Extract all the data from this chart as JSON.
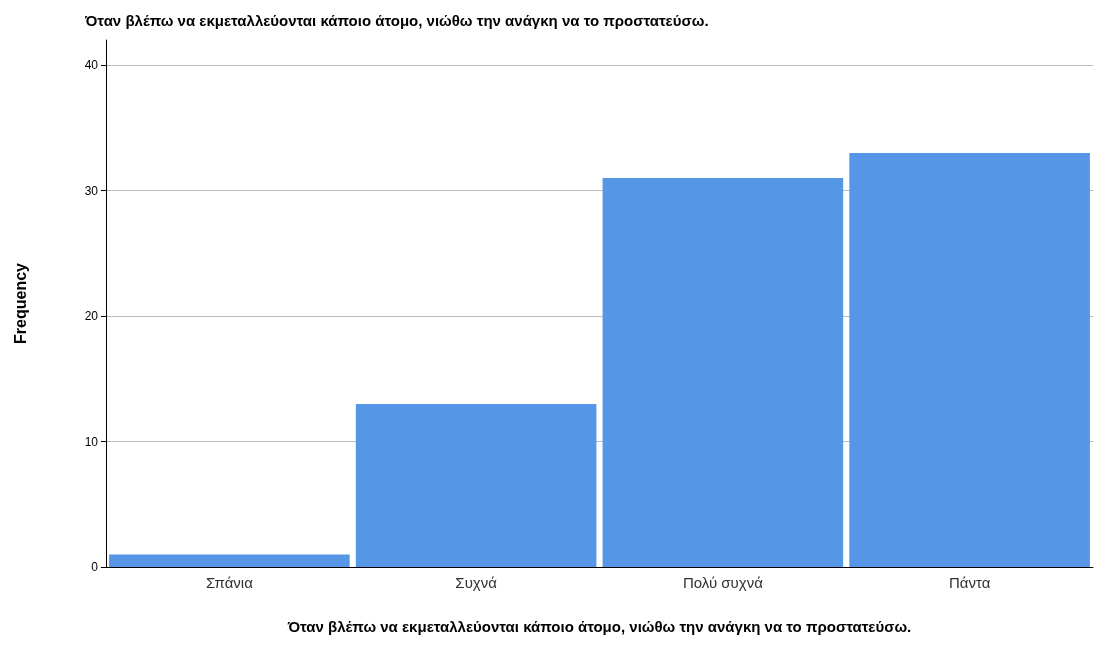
{
  "chart_data": {
    "type": "bar",
    "title": "Όταν βλέπω να εκμεταλλεύονται κάποιο άτομο, νιώθω την ανάγκη να το προστατεύσω.",
    "xlabel": "Όταν βλέπω να εκμεταλλεύονται κάποιο άτομο, νιώθω την ανάγκη να το προστατεύσω.",
    "ylabel": "Frequency",
    "categories": [
      "Σπάνια",
      "Συχνά",
      "Πολύ συχνά",
      "Πάντα"
    ],
    "values": [
      1,
      13,
      31,
      33
    ],
    "color": "#5596e6",
    "ylim": [
      0,
      42
    ],
    "yticks": [
      0,
      10,
      20,
      30,
      40
    ],
    "grid": "y"
  }
}
